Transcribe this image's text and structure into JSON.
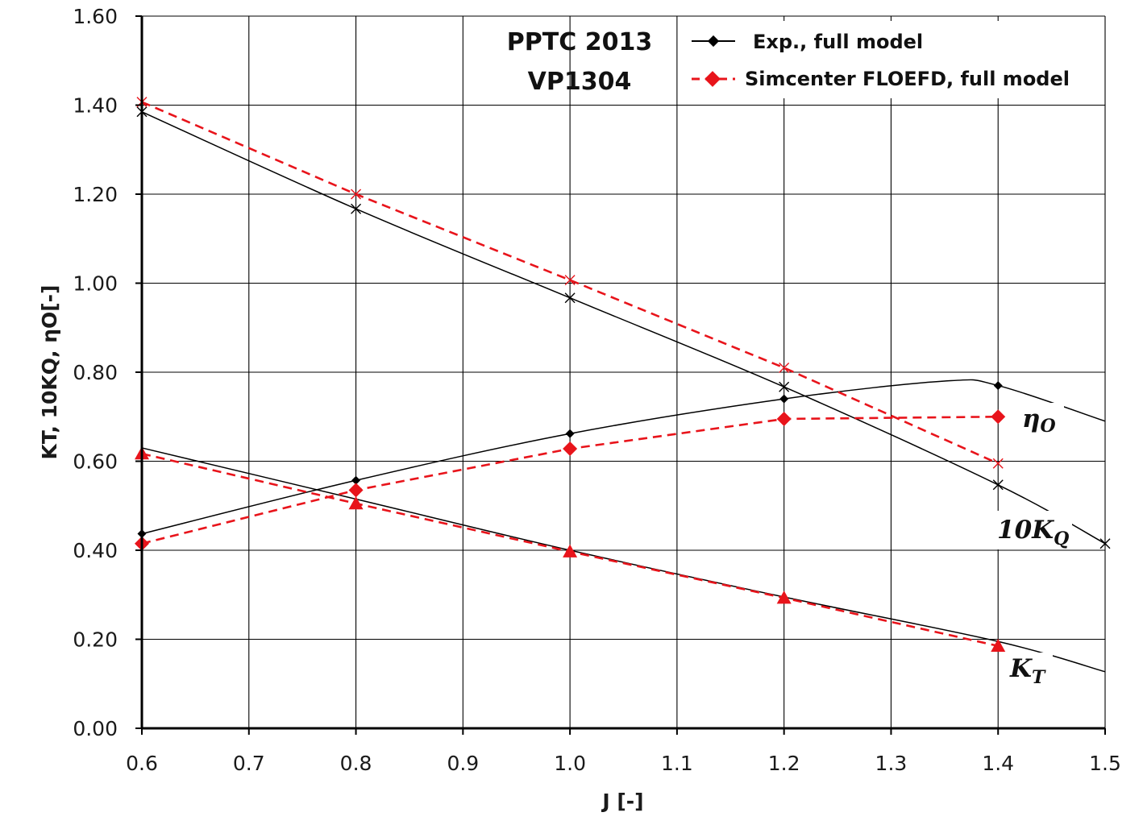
{
  "chart_data": {
    "type": "line",
    "title": [
      "PPTC 2013",
      "VP1304"
    ],
    "xlabel": "J [-]",
    "ylabel": "KT, 10KQ, ηO[-]",
    "xlim": [
      0.6,
      1.5
    ],
    "ylim": [
      0,
      1.6
    ],
    "x_ticks": [
      "0.6",
      "0.7",
      "0.8",
      "0.9",
      "1.0",
      "1.1",
      "1.2",
      "1.3",
      "1.4",
      "1.5"
    ],
    "y_ticks": [
      "0.00",
      "0.20",
      "0.40",
      "0.60",
      "0.80",
      "1.00",
      "1.20",
      "1.40",
      "1.60"
    ],
    "grid": true,
    "legend": {
      "position": "top-right",
      "entries": [
        "Exp., full model",
        "Simcenter FLOEFD, full model"
      ]
    },
    "colors": {
      "exp": "#000000",
      "sim": "#e8141b"
    },
    "curve_labels": {
      "eta": {
        "main": "η",
        "sub": "O"
      },
      "kq": {
        "main": "10K",
        "sub": "Q"
      },
      "kt": {
        "main": "K",
        "sub": "T"
      }
    },
    "series": [
      {
        "name": "Exp., full model",
        "quantity": "KT",
        "marker": "none",
        "x": [
          0.6,
          0.8,
          1.0,
          1.2,
          1.4,
          1.5
        ],
        "y": [
          0.63,
          0.515,
          0.4,
          0.295,
          0.195,
          0.127
        ]
      },
      {
        "name": "Exp., full model",
        "quantity": "10KQ",
        "marker": "x",
        "x": [
          0.6,
          0.8,
          1.0,
          1.2,
          1.4,
          1.5
        ],
        "y": [
          1.385,
          1.167,
          0.967,
          0.767,
          0.547,
          0.415
        ]
      },
      {
        "name": "Exp., full model",
        "quantity": "ηO",
        "marker": "diamond",
        "x": [
          0.6,
          0.8,
          1.0,
          1.2,
          1.35,
          1.4,
          1.5
        ],
        "y": [
          0.437,
          0.557,
          0.662,
          0.74,
          0.78,
          0.77,
          0.69
        ],
        "marker_x": [
          0.6,
          0.8,
          1.0,
          1.2,
          1.4
        ]
      },
      {
        "name": "Simcenter FLOEFD, full model",
        "quantity": "KT",
        "marker": "triangle",
        "x": [
          0.6,
          0.8,
          1.0,
          1.2,
          1.4
        ],
        "y": [
          0.617,
          0.505,
          0.397,
          0.293,
          0.185
        ]
      },
      {
        "name": "Simcenter FLOEFD, full model",
        "quantity": "10KQ",
        "marker": "x",
        "x": [
          0.6,
          0.8,
          1.0,
          1.2,
          1.4
        ],
        "y": [
          1.407,
          1.2,
          1.007,
          0.81,
          0.595
        ]
      },
      {
        "name": "Simcenter FLOEFD, full model",
        "quantity": "ηO",
        "marker": "diamond",
        "x": [
          0.6,
          0.8,
          1.0,
          1.2,
          1.4
        ],
        "y": [
          0.415,
          0.535,
          0.628,
          0.695,
          0.7
        ]
      }
    ]
  }
}
